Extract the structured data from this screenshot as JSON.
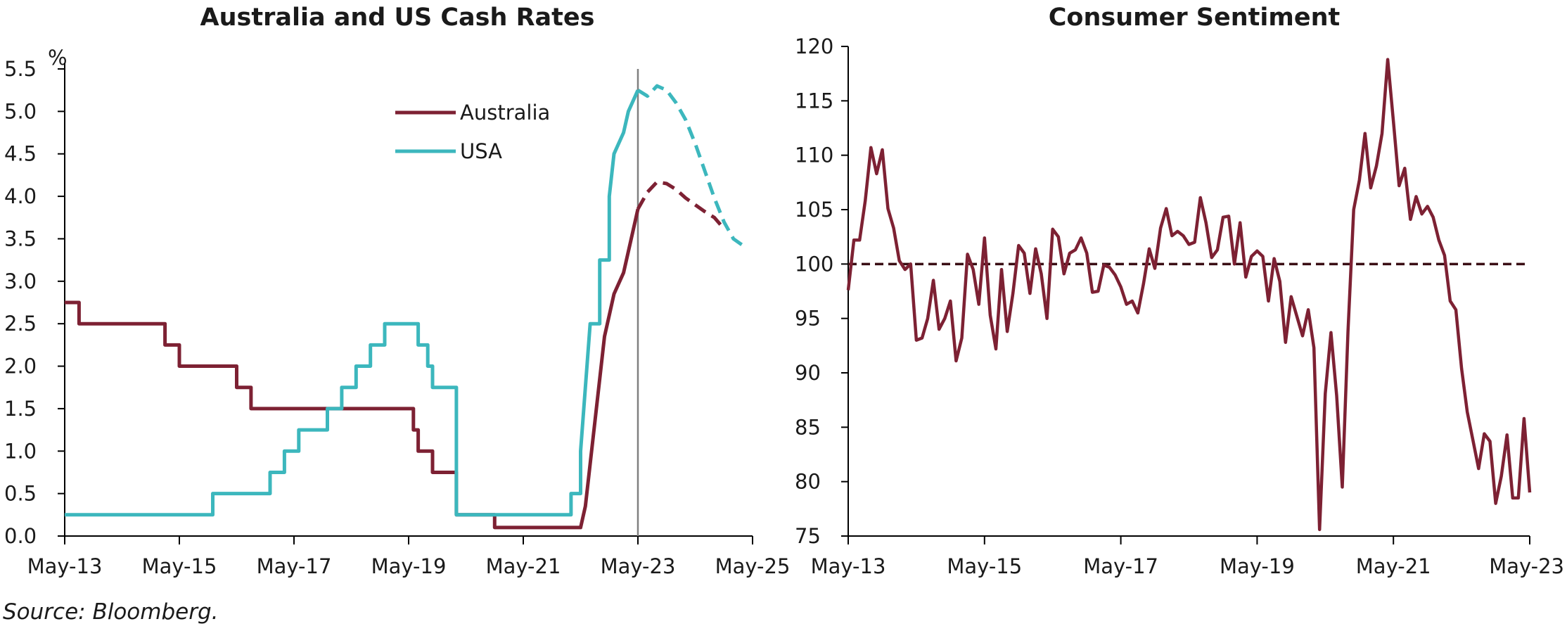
{
  "source": "Source: Bloomberg.",
  "colors": {
    "australia": "#7d2133",
    "usa": "#3cb7bd",
    "axis": "#000000",
    "marker": "#808080",
    "reference": "#3a0e14"
  },
  "chart_data": [
    {
      "type": "line",
      "title": "Australia and US Cash Rates",
      "ylabel": "%",
      "x_ticks": [
        "May-13",
        "May-15",
        "May-17",
        "May-19",
        "May-21",
        "May-23",
        "May-25"
      ],
      "xlim": [
        "2013-05",
        "2025-05"
      ],
      "ylim": [
        0,
        5.5
      ],
      "y_ticks": [
        "0.0",
        "0.5",
        "1.0",
        "1.5",
        "2.0",
        "2.5",
        "3.0",
        "3.5",
        "4.0",
        "4.5",
        "5.0",
        "5.5"
      ],
      "vertical_marker": "2023-05",
      "legend": "top-center",
      "grid": false,
      "series": [
        {
          "name": "Australia",
          "color": "#7d2133",
          "style": "solid",
          "points": [
            [
              "2013-05",
              2.75
            ],
            [
              "2013-08",
              2.75
            ],
            [
              "2013-08",
              2.5
            ],
            [
              "2015-02",
              2.5
            ],
            [
              "2015-02",
              2.25
            ],
            [
              "2015-05",
              2.25
            ],
            [
              "2015-05",
              2.0
            ],
            [
              "2016-05",
              2.0
            ],
            [
              "2016-05",
              1.75
            ],
            [
              "2016-08",
              1.75
            ],
            [
              "2016-08",
              1.5
            ],
            [
              "2019-06",
              1.5
            ],
            [
              "2019-06",
              1.25
            ],
            [
              "2019-07",
              1.25
            ],
            [
              "2019-07",
              1.0
            ],
            [
              "2019-10",
              1.0
            ],
            [
              "2019-10",
              0.75
            ],
            [
              "2020-03",
              0.75
            ],
            [
              "2020-03",
              0.25
            ],
            [
              "2020-11",
              0.25
            ],
            [
              "2020-11",
              0.1
            ],
            [
              "2022-05",
              0.1
            ],
            [
              "2022-06",
              0.35
            ],
            [
              "2022-07",
              0.85
            ],
            [
              "2022-08",
              1.35
            ],
            [
              "2022-09",
              1.85
            ],
            [
              "2022-10",
              2.35
            ],
            [
              "2022-11",
              2.6
            ],
            [
              "2022-12",
              2.85
            ],
            [
              "2023-02",
              3.1
            ],
            [
              "2023-03",
              3.35
            ],
            [
              "2023-04",
              3.6
            ],
            [
              "2023-05",
              3.85
            ]
          ]
        },
        {
          "name": "USA",
          "color": "#3cb7bd",
          "style": "solid",
          "points": [
            [
              "2013-05",
              0.25
            ],
            [
              "2015-12",
              0.25
            ],
            [
              "2015-12",
              0.5
            ],
            [
              "2016-12",
              0.5
            ],
            [
              "2016-12",
              0.75
            ],
            [
              "2017-03",
              0.75
            ],
            [
              "2017-03",
              1.0
            ],
            [
              "2017-06",
              1.0
            ],
            [
              "2017-06",
              1.25
            ],
            [
              "2017-12",
              1.25
            ],
            [
              "2017-12",
              1.5
            ],
            [
              "2018-03",
              1.5
            ],
            [
              "2018-03",
              1.75
            ],
            [
              "2018-06",
              1.75
            ],
            [
              "2018-06",
              2.0
            ],
            [
              "2018-09",
              2.0
            ],
            [
              "2018-09",
              2.25
            ],
            [
              "2018-12",
              2.25
            ],
            [
              "2018-12",
              2.5
            ],
            [
              "2019-07",
              2.5
            ],
            [
              "2019-07",
              2.25
            ],
            [
              "2019-09",
              2.25
            ],
            [
              "2019-09",
              2.0
            ],
            [
              "2019-10",
              2.0
            ],
            [
              "2019-10",
              1.75
            ],
            [
              "2020-03",
              1.75
            ],
            [
              "2020-03",
              0.25
            ],
            [
              "2022-03",
              0.25
            ],
            [
              "2022-03",
              0.5
            ],
            [
              "2022-05",
              0.5
            ],
            [
              "2022-05",
              1.0
            ],
            [
              "2022-06",
              1.75
            ],
            [
              "2022-07",
              2.5
            ],
            [
              "2022-09",
              2.5
            ],
            [
              "2022-09",
              3.25
            ],
            [
              "2022-11",
              3.25
            ],
            [
              "2022-11",
              4.0
            ],
            [
              "2022-12",
              4.5
            ],
            [
              "2023-02",
              4.75
            ],
            [
              "2023-03",
              5.0
            ],
            [
              "2023-05",
              5.25
            ]
          ]
        },
        {
          "name": "",
          "color": "#7d2133",
          "style": "dashed",
          "points": [
            [
              "2023-05",
              3.85
            ],
            [
              "2023-07",
              4.05
            ],
            [
              "2023-09",
              4.17
            ],
            [
              "2023-11",
              4.15
            ],
            [
              "2024-01",
              4.08
            ],
            [
              "2024-03",
              3.98
            ],
            [
              "2024-05",
              3.9
            ],
            [
              "2024-07",
              3.82
            ],
            [
              "2024-09",
              3.75
            ],
            [
              "2024-11",
              3.62
            ]
          ]
        },
        {
          "name": "",
          "color": "#3cb7bd",
          "style": "dashed",
          "points": [
            [
              "2023-05",
              5.25
            ],
            [
              "2023-07",
              5.18
            ],
            [
              "2023-09",
              5.3
            ],
            [
              "2023-11",
              5.25
            ],
            [
              "2024-01",
              5.1
            ],
            [
              "2024-03",
              4.9
            ],
            [
              "2024-05",
              4.62
            ],
            [
              "2024-07",
              4.3
            ],
            [
              "2024-09",
              3.98
            ],
            [
              "2024-11",
              3.7
            ],
            [
              "2025-01",
              3.5
            ],
            [
              "2025-03",
              3.42
            ],
            [
              "2025-04",
              3.42
            ]
          ]
        }
      ]
    },
    {
      "type": "line",
      "title": "Consumer Sentiment",
      "x_ticks": [
        "May-13",
        "May-15",
        "May-17",
        "May-19",
        "May-21",
        "May-23"
      ],
      "xlim": [
        "2013-05",
        "2023-05"
      ],
      "ylim": [
        75,
        120
      ],
      "y_ticks": [
        "75",
        "80",
        "85",
        "90",
        "95",
        "100",
        "105",
        "110",
        "115",
        "120"
      ],
      "reference_line": 100,
      "grid": false,
      "series": [
        {
          "name": "",
          "color": "#7d2133",
          "values": [
            97.6,
            102.2,
            102.2,
            105.8,
            110.7,
            108.3,
            110.5,
            105.1,
            103.3,
            100.3,
            99.5,
            100.0,
            93.0,
            93.2,
            95.0,
            98.5,
            94.0,
            95.0,
            96.6,
            91.1,
            93.2,
            100.9,
            99.5,
            96.3,
            102.4,
            95.3,
            92.2,
            99.5,
            93.8,
            97.3,
            101.7,
            101.0,
            97.3,
            101.4,
            99.1,
            95.0,
            103.2,
            102.5,
            99.1,
            101.0,
            101.3,
            102.4,
            101.0,
            97.4,
            97.5,
            99.9,
            99.7,
            99.0,
            97.9,
            96.3,
            96.6,
            95.5,
            98.2,
            101.4,
            99.6,
            103.3,
            105.1,
            102.6,
            103.0,
            102.6,
            101.8,
            102.0,
            106.1,
            103.8,
            100.6,
            101.3,
            104.3,
            104.4,
            100.0,
            103.8,
            98.8,
            100.7,
            101.2,
            100.7,
            96.6,
            100.5,
            98.4,
            92.8,
            97.0,
            95.2,
            93.4,
            95.8,
            92.3,
            75.6,
            88.1,
            93.7,
            87.9,
            79.5,
            93.8,
            105.0,
            107.7,
            112.0,
            107.0,
            109.0,
            112.0,
            118.8,
            113.1,
            107.2,
            108.8,
            104.1,
            106.2,
            104.6,
            105.3,
            104.3,
            102.2,
            100.8,
            96.6,
            95.8,
            90.4,
            86.4,
            83.8,
            81.2,
            84.4,
            83.7,
            78.0,
            80.5,
            84.3,
            78.5,
            78.5,
            85.8,
            79.0
          ]
        }
      ]
    }
  ]
}
